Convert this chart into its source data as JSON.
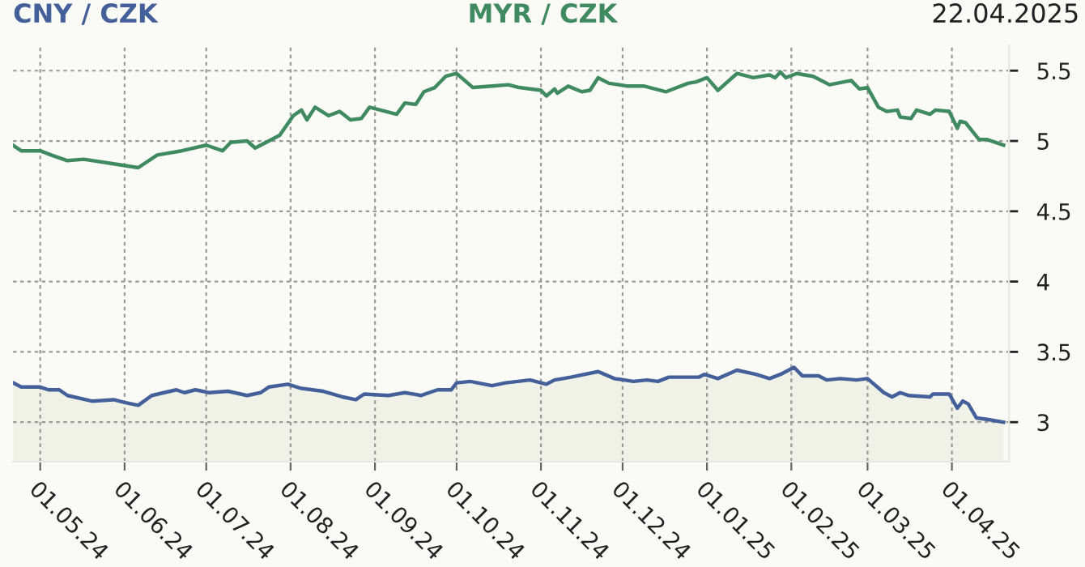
{
  "chart_data": {
    "type": "line",
    "title": "22.04.2025",
    "xlim": [
      "2024-04-21",
      "2025-04-22"
    ],
    "ylim": [
      2.72,
      5.68
    ],
    "yticks": [
      3,
      3.5,
      4,
      4.5,
      5,
      5.5
    ],
    "xticks": [
      {
        "value": "2024-05-01",
        "label": "01.05.24"
      },
      {
        "value": "2024-06-01",
        "label": "01.06.24"
      },
      {
        "value": "2024-07-01",
        "label": "01.07.24"
      },
      {
        "value": "2024-08-01",
        "label": "01.08.24"
      },
      {
        "value": "2024-09-01",
        "label": "01.09.24"
      },
      {
        "value": "2024-10-01",
        "label": "01.10.24"
      },
      {
        "value": "2024-11-01",
        "label": "01.11.24"
      },
      {
        "value": "2024-12-01",
        "label": "01.12.24"
      },
      {
        "value": "2025-01-01",
        "label": "01.01.25"
      },
      {
        "value": "2025-02-01",
        "label": "01.02.25"
      },
      {
        "value": "2025-03-01",
        "label": "01.03.25"
      },
      {
        "value": "2025-04-01",
        "label": "01.04.25"
      }
    ],
    "grid": true,
    "legend": false,
    "line_style": "solid",
    "series": [
      {
        "name": "CNY / CZK",
        "type": "area",
        "color": "#43609a",
        "x": [
          "2024-04-21",
          "2024-04-24",
          "2024-05-01",
          "2024-05-04",
          "2024-05-08",
          "2024-05-11",
          "2024-05-20",
          "2024-05-28",
          "2024-06-01",
          "2024-06-06",
          "2024-06-11",
          "2024-06-20",
          "2024-06-23",
          "2024-06-27",
          "2024-07-02",
          "2024-07-09",
          "2024-07-16",
          "2024-07-21",
          "2024-07-24",
          "2024-07-31",
          "2024-08-05",
          "2024-08-13",
          "2024-08-20",
          "2024-08-25",
          "2024-08-28",
          "2024-09-06",
          "2024-09-12",
          "2024-09-18",
          "2024-09-24",
          "2024-09-29",
          "2024-10-01",
          "2024-10-06",
          "2024-10-14",
          "2024-10-19",
          "2024-10-28",
          "2024-11-01",
          "2024-11-03",
          "2024-11-06",
          "2024-11-12",
          "2024-11-22",
          "2024-11-28",
          "2024-12-05",
          "2024-12-10",
          "2024-12-14",
          "2024-12-18",
          "2024-12-29",
          "2024-12-31",
          "2025-01-05",
          "2025-01-12",
          "2025-01-19",
          "2025-01-24",
          "2025-01-28",
          "2025-02-02",
          "2025-02-05",
          "2025-02-11",
          "2025-02-14",
          "2025-02-19",
          "2025-02-25",
          "2025-03-01",
          "2025-03-07",
          "2025-03-10",
          "2025-03-13",
          "2025-03-16",
          "2025-03-24",
          "2025-03-25",
          "2025-03-31",
          "2025-04-03",
          "2025-04-05",
          "2025-04-07",
          "2025-04-10",
          "2025-04-14",
          "2025-04-20"
        ],
        "values": [
          3.28,
          3.25,
          3.25,
          3.23,
          3.23,
          3.19,
          3.15,
          3.16,
          3.14,
          3.12,
          3.19,
          3.23,
          3.21,
          3.23,
          3.21,
          3.22,
          3.19,
          3.21,
          3.25,
          3.27,
          3.24,
          3.22,
          3.18,
          3.16,
          3.2,
          3.19,
          3.21,
          3.19,
          3.23,
          3.23,
          3.28,
          3.29,
          3.26,
          3.28,
          3.3,
          3.28,
          3.27,
          3.3,
          3.32,
          3.36,
          3.31,
          3.29,
          3.3,
          3.29,
          3.32,
          3.32,
          3.34,
          3.31,
          3.37,
          3.34,
          3.31,
          3.34,
          3.39,
          3.33,
          3.33,
          3.3,
          3.31,
          3.3,
          3.31,
          3.21,
          3.18,
          3.21,
          3.19,
          3.18,
          3.2,
          3.2,
          3.1,
          3.15,
          3.13,
          3.03,
          3.02,
          3.0
        ]
      },
      {
        "name": "MYR / CZK",
        "color": "#3f8a5e",
        "x": [
          "2024-04-21",
          "2024-04-24",
          "2024-05-01",
          "2024-05-05",
          "2024-05-11",
          "2024-05-17",
          "2024-05-27",
          "2024-06-06",
          "2024-06-13",
          "2024-06-22",
          "2024-07-01",
          "2024-07-07",
          "2024-07-10",
          "2024-07-16",
          "2024-07-19",
          "2024-07-28",
          "2024-08-02",
          "2024-08-05",
          "2024-08-07",
          "2024-08-10",
          "2024-08-15",
          "2024-08-19",
          "2024-08-23",
          "2024-08-27",
          "2024-08-30",
          "2024-09-09",
          "2024-09-12",
          "2024-09-16",
          "2024-09-19",
          "2024-09-23",
          "2024-09-27",
          "2024-10-01",
          "2024-10-07",
          "2024-10-14",
          "2024-10-20",
          "2024-10-24",
          "2024-11-01",
          "2024-11-03",
          "2024-11-06",
          "2024-11-07",
          "2024-11-11",
          "2024-11-16",
          "2024-11-19",
          "2024-11-22",
          "2024-11-26",
          "2024-12-03",
          "2024-12-09",
          "2024-12-17",
          "2024-12-25",
          "2024-12-28",
          "2025-01-01",
          "2025-01-05",
          "2025-01-12",
          "2025-01-18",
          "2025-01-24",
          "2025-01-26",
          "2025-01-28",
          "2025-01-30",
          "2025-02-03",
          "2025-02-09",
          "2025-02-15",
          "2025-02-23",
          "2025-02-26",
          "2025-03-01",
          "2025-03-05",
          "2025-03-08",
          "2025-03-12",
          "2025-03-13",
          "2025-03-17",
          "2025-03-19",
          "2025-03-24",
          "2025-03-26",
          "2025-03-31",
          "2025-04-03",
          "2025-04-04",
          "2025-04-06",
          "2025-04-11",
          "2025-04-14",
          "2025-04-20"
        ],
        "values": [
          4.97,
          4.93,
          4.93,
          4.9,
          4.86,
          4.87,
          4.84,
          4.81,
          4.9,
          4.93,
          4.97,
          4.93,
          4.99,
          5.0,
          4.95,
          5.04,
          5.18,
          5.22,
          5.15,
          5.24,
          5.18,
          5.21,
          5.15,
          5.16,
          5.24,
          5.19,
          5.27,
          5.26,
          5.35,
          5.38,
          5.46,
          5.48,
          5.38,
          5.39,
          5.4,
          5.38,
          5.36,
          5.32,
          5.37,
          5.34,
          5.39,
          5.35,
          5.36,
          5.45,
          5.41,
          5.39,
          5.39,
          5.35,
          5.41,
          5.42,
          5.45,
          5.36,
          5.48,
          5.45,
          5.47,
          5.45,
          5.49,
          5.45,
          5.48,
          5.46,
          5.4,
          5.43,
          5.37,
          5.38,
          5.24,
          5.21,
          5.22,
          5.17,
          5.16,
          5.22,
          5.19,
          5.22,
          5.21,
          5.09,
          5.14,
          5.13,
          5.01,
          5.01,
          4.97
        ]
      }
    ]
  }
}
